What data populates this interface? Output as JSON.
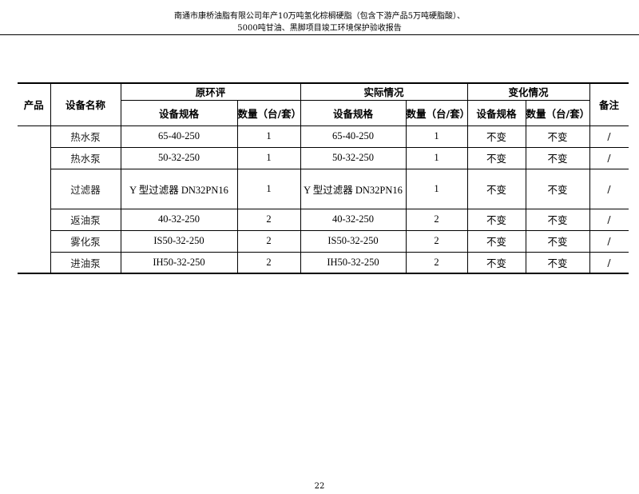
{
  "header": {
    "line1": "南通市康桥油脂有限公司年产10万吨氢化棕榈硬脂（包含下游产品5万吨硬脂酸）、",
    "line2": "5000吨甘油、黑脚项目竣工环境保护验收报告"
  },
  "table": {
    "headers": {
      "product": "产品",
      "name": "设备名称",
      "original": "原环评",
      "actual": "实际情况",
      "change": "变化情况",
      "remark": "备注",
      "spec": "设备规格",
      "qty": "数量（台/套）"
    },
    "rows": [
      {
        "name": "热水泵",
        "orig_spec": "65-40-250",
        "orig_qty": "1",
        "act_spec": "65-40-250",
        "act_qty": "1",
        "chg_spec": "不变",
        "chg_qty": "不变",
        "remark": "/"
      },
      {
        "name": "热水泵",
        "orig_spec": "50-32-250",
        "orig_qty": "1",
        "act_spec": "50-32-250",
        "act_qty": "1",
        "chg_spec": "不变",
        "chg_qty": "不变",
        "remark": "/"
      },
      {
        "name": "过滤器",
        "orig_spec": "Y 型过滤器 DN32PN16",
        "orig_qty": "1",
        "act_spec": "Y 型过滤器 DN32PN16",
        "act_qty": "1",
        "chg_spec": "不变",
        "chg_qty": "不变",
        "remark": "/"
      },
      {
        "name": "返油泵",
        "orig_spec": "40-32-250",
        "orig_qty": "2",
        "act_spec": "40-32-250",
        "act_qty": "2",
        "chg_spec": "不变",
        "chg_qty": "不变",
        "remark": "/"
      },
      {
        "name": "雾化泵",
        "orig_spec": "IS50-32-250",
        "orig_qty": "2",
        "act_spec": "IS50-32-250",
        "act_qty": "2",
        "chg_spec": "不变",
        "chg_qty": "不变",
        "remark": "/"
      },
      {
        "name": "进油泵",
        "orig_spec": "IH50-32-250",
        "orig_qty": "2",
        "act_spec": "IH50-32-250",
        "act_qty": "2",
        "chg_spec": "不变",
        "chg_qty": "不变",
        "remark": "/"
      }
    ]
  },
  "page_number": "22"
}
